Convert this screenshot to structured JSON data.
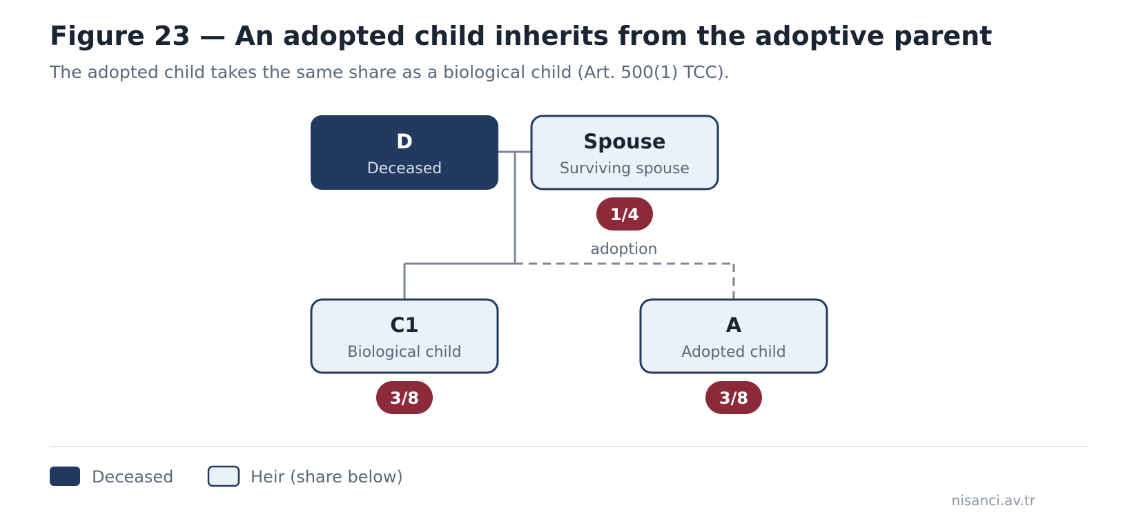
{
  "header": {
    "title": "Figure 23 — An adopted child inherits from the adoptive parent",
    "subtitle": "The adopted child takes the same share as a biological child (Art. 500(1) TCC)."
  },
  "colors": {
    "deceased_fill": "#213a5e",
    "heir_fill": "#eaf1f9",
    "border": "#213a5e",
    "share_badge": "#8c2a3a",
    "connector": "#7c8696"
  },
  "nodes": {
    "deceased": {
      "name": "D",
      "role": "Deceased"
    },
    "spouse": {
      "name": "Spouse",
      "role": "Surviving spouse",
      "share": "1/4"
    },
    "child_biological": {
      "name": "C1",
      "role": "Biological child",
      "share": "3/8"
    },
    "child_adopted": {
      "name": "A",
      "role": "Adopted child",
      "share": "3/8"
    }
  },
  "edges": {
    "adoption_label": "adoption"
  },
  "legend": {
    "deceased_label": "Deceased",
    "heir_label": "Heir (share below)"
  },
  "footer": {
    "credit": "nisanci.av.tr"
  }
}
